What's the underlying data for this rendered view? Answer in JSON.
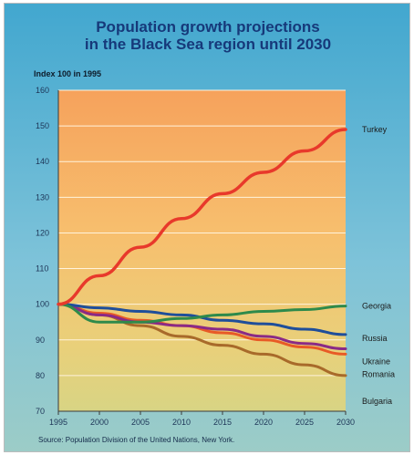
{
  "chart_data": {
    "type": "line",
    "title": "Population growth projections",
    "subtitle": "in the Black Sea region until 2030",
    "ylabel": "Index 100 in 1995",
    "xlabel": "",
    "ylim": [
      70,
      160
    ],
    "yticks": [
      70,
      80,
      90,
      100,
      110,
      120,
      130,
      140,
      150,
      160
    ],
    "xticks": [
      1995,
      2000,
      2005,
      2010,
      2015,
      2020,
      2025,
      2030
    ],
    "source": "Source: Population Division of the United Nations, New York.",
    "x": [
      1995,
      2000,
      2005,
      2010,
      2015,
      2020,
      2025,
      2030
    ],
    "series": [
      {
        "name": "Turkey",
        "color": "#e8392b",
        "values": [
          100,
          108,
          116,
          124,
          131,
          137,
          143,
          149
        ]
      },
      {
        "name": "Georgia",
        "color": "#2e8a4b",
        "values": [
          100,
          95,
          95,
          96,
          97,
          98,
          98.5,
          99.5
        ]
      },
      {
        "name": "Russia",
        "color": "#1f4e9a",
        "values": [
          100,
          99,
          98,
          97,
          95.5,
          94.5,
          93,
          91.5
        ]
      },
      {
        "name": "Ukraine",
        "color": "#8a2a86",
        "values": [
          100,
          97,
          95,
          94,
          93,
          91,
          89,
          87.5
        ]
      },
      {
        "name": "Romania",
        "color": "#e85a26",
        "values": [
          100,
          97.5,
          95.5,
          94,
          92,
          90,
          88,
          86
        ]
      },
      {
        "name": "Bulgaria",
        "color": "#a86a2a",
        "values": [
          100,
          97,
          94,
          91,
          88.5,
          86,
          83,
          80
        ]
      }
    ]
  }
}
